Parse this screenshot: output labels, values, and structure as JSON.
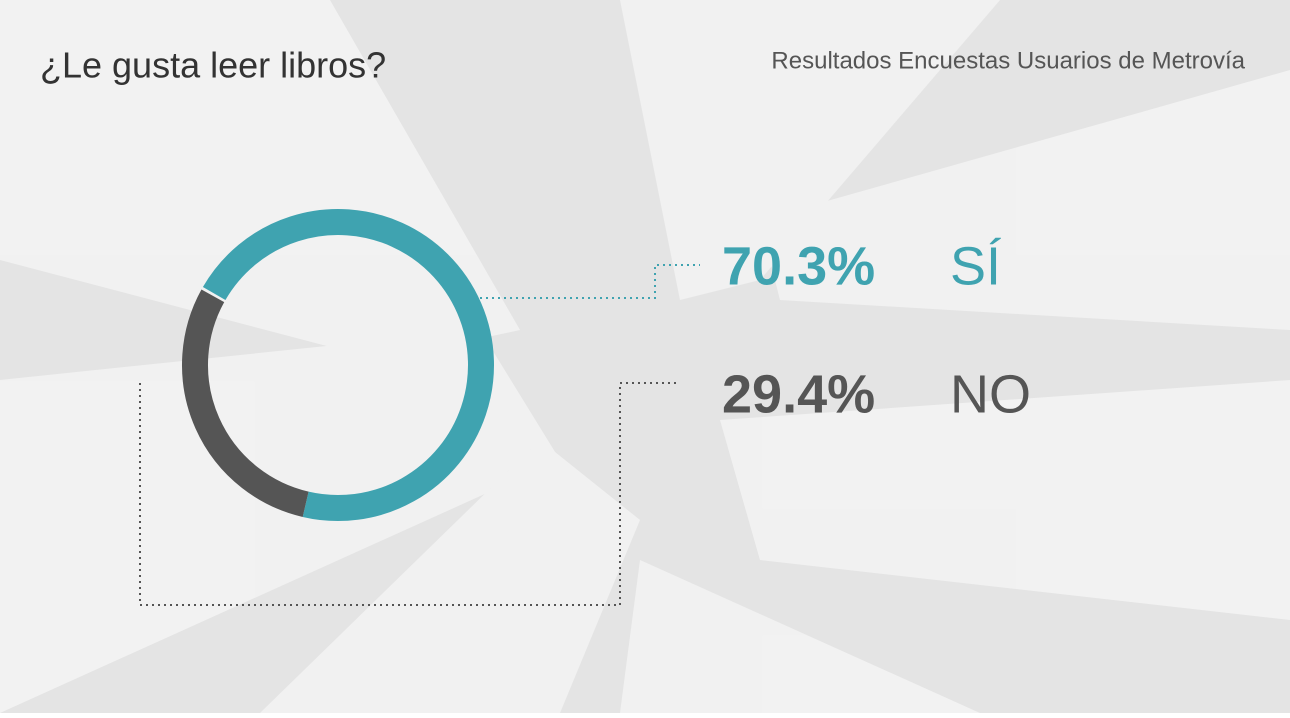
{
  "chart_data": {
    "type": "donut",
    "title": "¿Le gusta leer libros?",
    "subtitle": "Resultados Encuestas Usuarios de Metrovía",
    "categories": [
      "SÍ",
      "NO"
    ],
    "values": [
      70.3,
      29.4
    ],
    "value_labels": [
      "70.3%",
      "29.4%"
    ],
    "colors": [
      "#3fa3b0",
      "#555555"
    ]
  }
}
